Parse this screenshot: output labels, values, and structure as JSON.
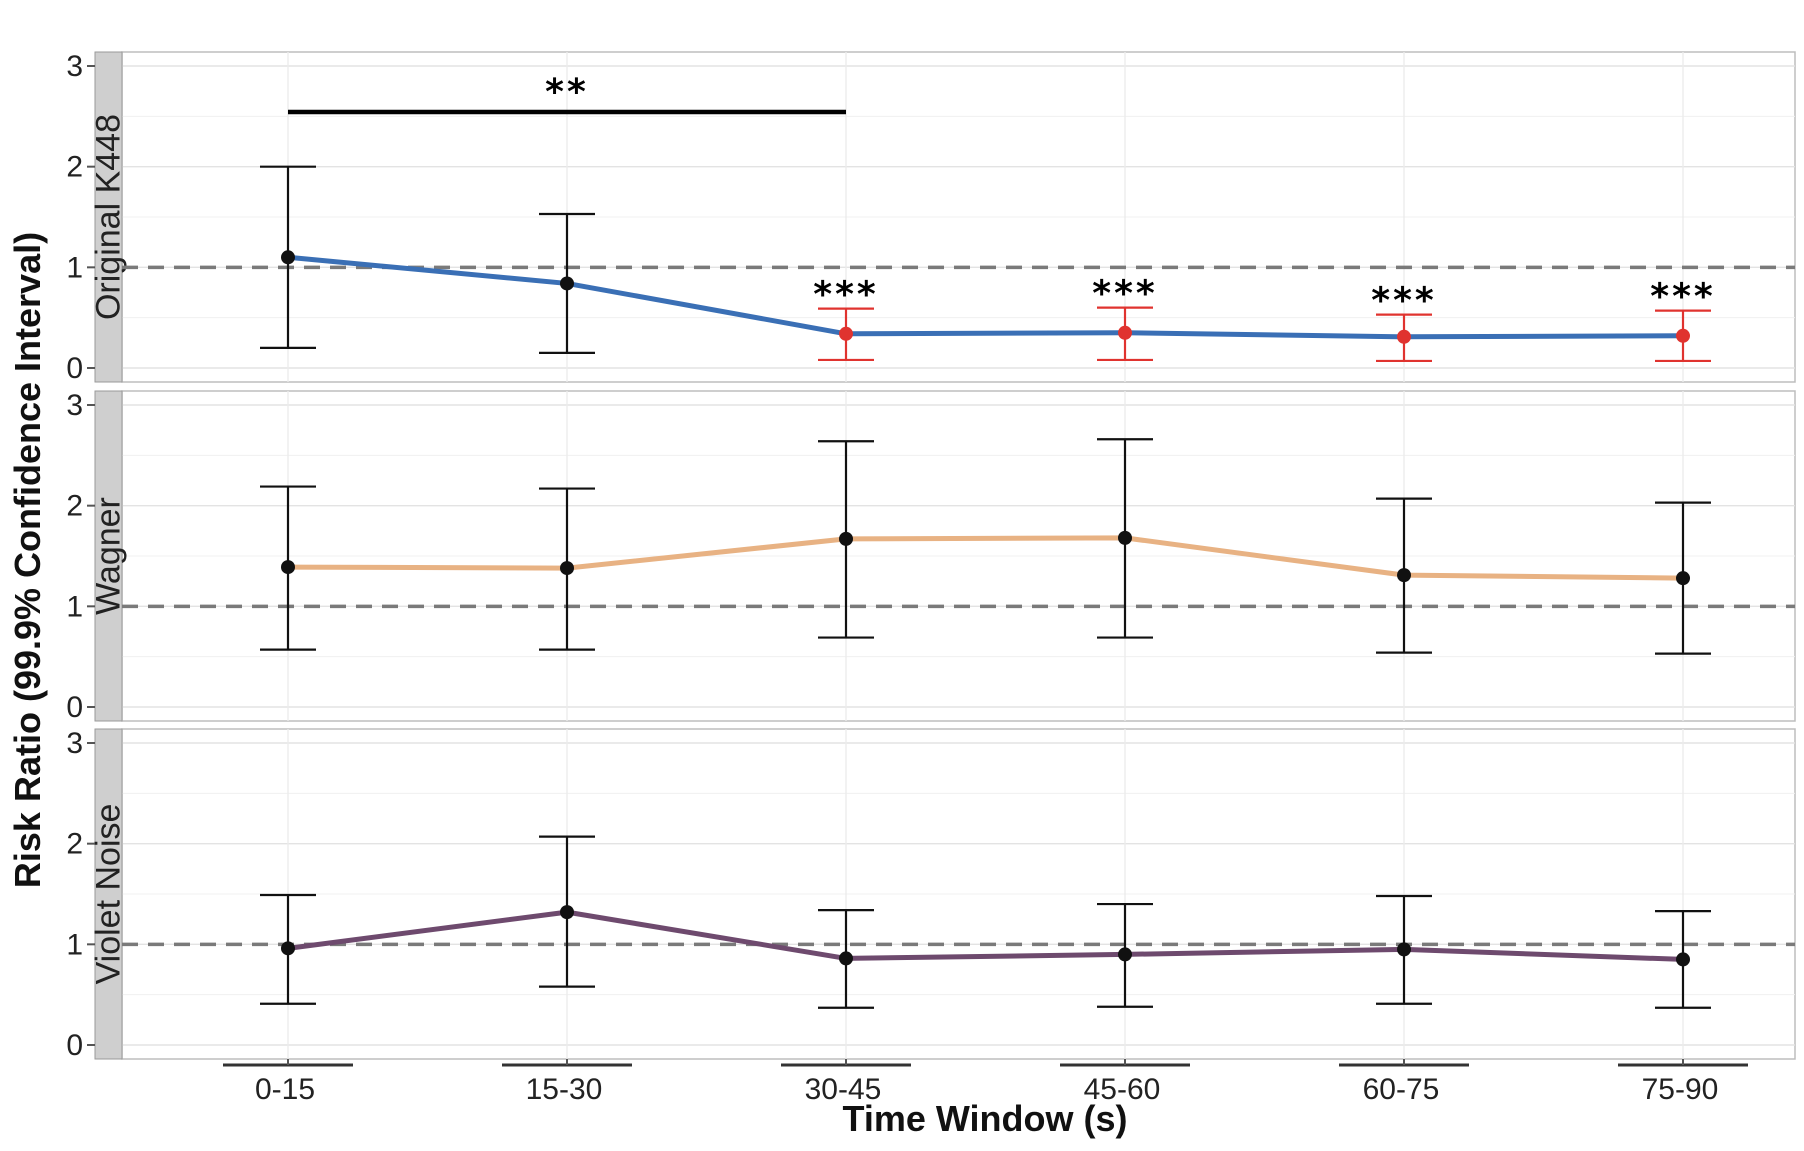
{
  "chart_data": {
    "type": "line",
    "xlabel": "Time Window (s)",
    "ylabel": "Risk Ratio (99.9% Confidence Interval)",
    "categories": [
      "0-15",
      "15-30",
      "30-45",
      "45-60",
      "60-75",
      "75-90"
    ],
    "ylim": [
      0,
      3
    ],
    "yticks": [
      "0",
      "1",
      "2",
      "3"
    ],
    "reference_line": 1,
    "grid": true,
    "panels": [
      {
        "name": "Original K448",
        "color": "#3a6fb5",
        "values": [
          1.1,
          0.84,
          0.34,
          0.35,
          0.31,
          0.32
        ],
        "ci_low": [
          0.2,
          0.15,
          0.08,
          0.08,
          0.07,
          0.07
        ],
        "ci_high": [
          2.0,
          1.53,
          0.59,
          0.6,
          0.53,
          0.57
        ],
        "significant": [
          false,
          false,
          true,
          true,
          true,
          true
        ],
        "significance_labels": [
          "",
          "",
          "***",
          "***",
          "***",
          "***"
        ],
        "bracket": {
          "from": "0-15",
          "to": "30-45",
          "label": "**"
        }
      },
      {
        "name": "Wagner",
        "color": "#e8b283",
        "values": [
          1.39,
          1.38,
          1.67,
          1.68,
          1.31,
          1.28
        ],
        "ci_low": [
          0.57,
          0.57,
          0.69,
          0.69,
          0.54,
          0.53
        ],
        "ci_high": [
          2.19,
          2.17,
          2.64,
          2.66,
          2.07,
          2.03
        ],
        "significant": [
          false,
          false,
          false,
          false,
          false,
          false
        ],
        "significance_labels": [
          "",
          "",
          "",
          "",
          "",
          ""
        ]
      },
      {
        "name": "Violet Noise",
        "color": "#6e4a6e",
        "values": [
          0.96,
          1.32,
          0.86,
          0.9,
          0.95,
          0.85
        ],
        "ci_low": [
          0.41,
          0.58,
          0.37,
          0.38,
          0.41,
          0.37
        ],
        "ci_high": [
          1.49,
          2.07,
          1.34,
          1.4,
          1.48,
          1.33
        ],
        "significant": [
          false,
          false,
          false,
          false,
          false,
          false
        ],
        "significance_labels": [
          "",
          "",
          "",
          "",
          "",
          ""
        ]
      }
    ]
  }
}
